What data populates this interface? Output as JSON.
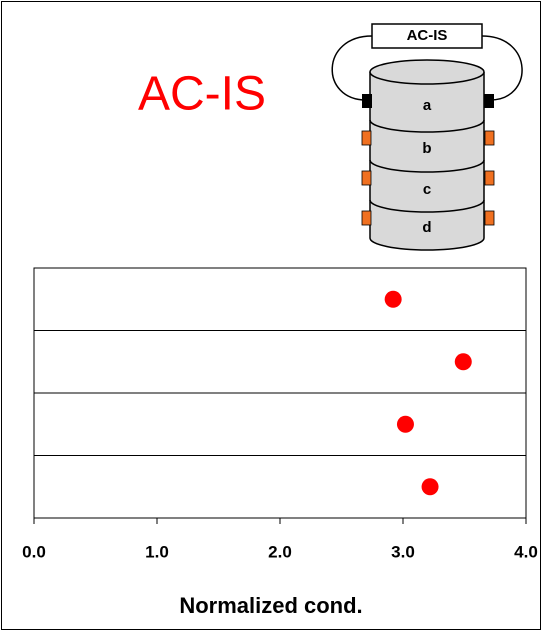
{
  "chart_data": {
    "type": "dot",
    "title": "AC-IS",
    "title_color": "#ff0000",
    "categories": [
      null,
      null,
      null,
      null
    ],
    "values": [
      2.92,
      3.49,
      3.02,
      3.22
    ],
    "color": "#ff0000",
    "xlabel": "Normalized cond.",
    "xlim": [
      0,
      4
    ],
    "xticks": [
      {
        "value": 0,
        "label": "0.0"
      },
      {
        "value": 1,
        "label": "1.0"
      },
      {
        "value": 2,
        "label": "2.0"
      },
      {
        "value": 3,
        "label": "3.0"
      },
      {
        "value": 4,
        "label": "4.0"
      }
    ]
  },
  "diagram": {
    "label": "AC-IS",
    "layers": [
      "a",
      "b",
      "c",
      "d"
    ]
  }
}
